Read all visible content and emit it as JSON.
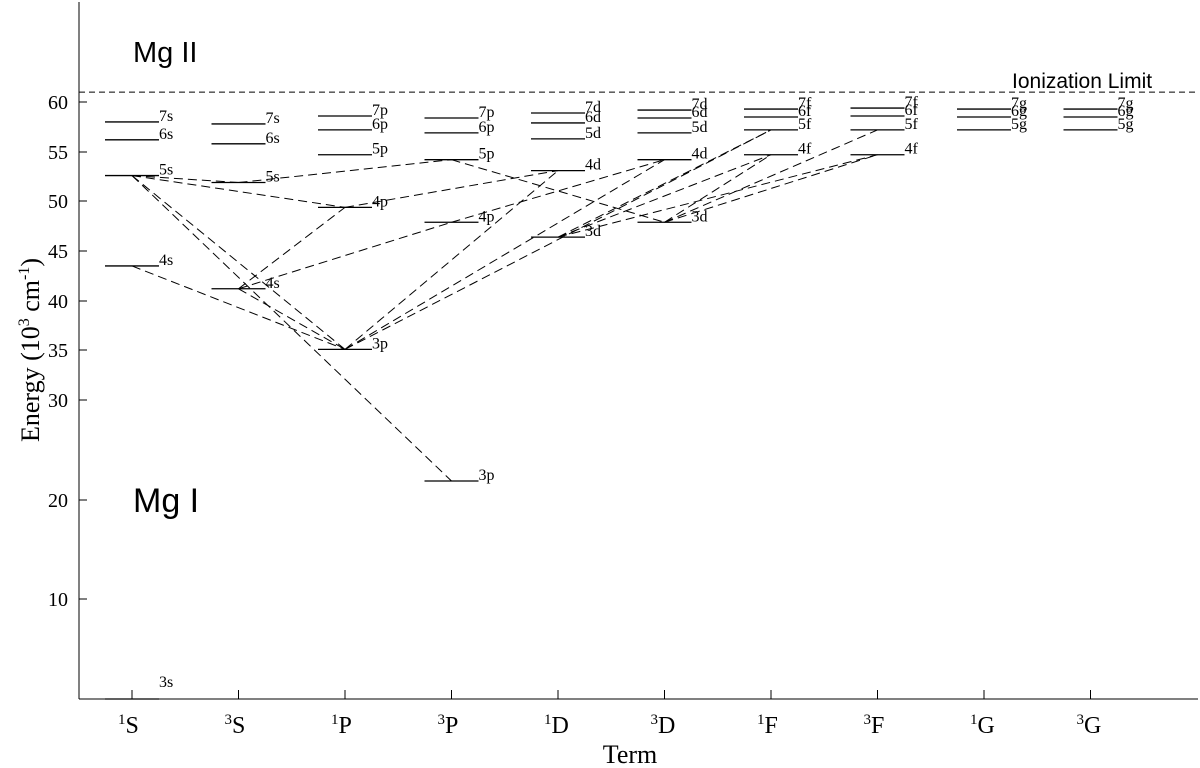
{
  "diagram": {
    "title_mg2": "Mg II",
    "title_mg1": "Mg I",
    "ionization_label": "Ionization Limit",
    "ionization_energy": 61,
    "y_axis": {
      "label_prefix": "Energy (10",
      "label_exp": "3",
      "label_unit": " cm",
      "label_unit_exp": "-1",
      "label_suffix": ")",
      "ticks": [
        "60",
        "55",
        "50",
        "45",
        "40",
        "35",
        "30",
        "20",
        "10"
      ]
    },
    "x_axis": {
      "label": "Term",
      "terms": [
        {
          "sup": "1",
          "base": "S"
        },
        {
          "sup": "3",
          "base": "S"
        },
        {
          "sup": "1",
          "base": "P"
        },
        {
          "sup": "3",
          "base": "P"
        },
        {
          "sup": "1",
          "base": "D"
        },
        {
          "sup": "3",
          "base": "D"
        },
        {
          "sup": "1",
          "base": "F"
        },
        {
          "sup": "3",
          "base": "F"
        },
        {
          "sup": "1",
          "base": "G"
        },
        {
          "sup": "3",
          "base": "G"
        }
      ]
    },
    "levels": [
      {
        "term": 0,
        "label": "3s",
        "energy": 0
      },
      {
        "term": 0,
        "label": "4s",
        "energy": 43.5
      },
      {
        "term": 0,
        "label": "5s",
        "energy": 52.6
      },
      {
        "term": 0,
        "label": "6s",
        "energy": 56.2
      },
      {
        "term": 0,
        "label": "7s",
        "energy": 58
      },
      {
        "term": 1,
        "label": "4s",
        "energy": 41.2
      },
      {
        "term": 1,
        "label": "5s",
        "energy": 51.9
      },
      {
        "term": 1,
        "label": "6s",
        "energy": 55.8
      },
      {
        "term": 1,
        "label": "7s",
        "energy": 57.8
      },
      {
        "term": 2,
        "label": "3p",
        "energy": 35.1
      },
      {
        "term": 2,
        "label": "4p",
        "energy": 49.4
      },
      {
        "term": 2,
        "label": "5p",
        "energy": 54.7
      },
      {
        "term": 2,
        "label": "6p",
        "energy": 57.2
      },
      {
        "term": 2,
        "label": "7p",
        "energy": 58.6
      },
      {
        "term": 3,
        "label": "3p",
        "energy": 21.9
      },
      {
        "term": 3,
        "label": "4p",
        "energy": 47.9
      },
      {
        "term": 3,
        "label": "5p",
        "energy": 54.2
      },
      {
        "term": 3,
        "label": "6p",
        "energy": 56.9
      },
      {
        "term": 3,
        "label": "7p",
        "energy": 58.4
      },
      {
        "term": 4,
        "label": "3d",
        "energy": 46.4
      },
      {
        "term": 4,
        "label": "4d",
        "energy": 53.1
      },
      {
        "term": 4,
        "label": "5d",
        "energy": 56.3
      },
      {
        "term": 4,
        "label": "6d",
        "energy": 57.9
      },
      {
        "term": 4,
        "label": "7d",
        "energy": 58.9
      },
      {
        "term": 5,
        "label": "3d",
        "energy": 47.9
      },
      {
        "term": 5,
        "label": "4d",
        "energy": 54.2
      },
      {
        "term": 5,
        "label": "5d",
        "energy": 56.9
      },
      {
        "term": 5,
        "label": "6d",
        "energy": 58.4
      },
      {
        "term": 5,
        "label": "7d",
        "energy": 59.2
      },
      {
        "term": 6,
        "label": "4f",
        "energy": 54.7
      },
      {
        "term": 6,
        "label": "5f",
        "energy": 57.2
      },
      {
        "term": 6,
        "label": "6f",
        "energy": 58.5
      },
      {
        "term": 6,
        "label": "7f",
        "energy": 59.3
      },
      {
        "term": 7,
        "label": "4f",
        "energy": 54.7
      },
      {
        "term": 7,
        "label": "5f",
        "energy": 57.2
      },
      {
        "term": 7,
        "label": "6f",
        "energy": 58.6
      },
      {
        "term": 7,
        "label": "7f",
        "energy": 59.4
      },
      {
        "term": 8,
        "label": "5g",
        "energy": 57.2
      },
      {
        "term": 8,
        "label": "6g",
        "energy": 58.5
      },
      {
        "term": 8,
        "label": "7g",
        "energy": 59.3
      },
      {
        "term": 9,
        "label": "5g",
        "energy": 57.2
      },
      {
        "term": 9,
        "label": "6g",
        "energy": 58.5
      },
      {
        "term": 9,
        "label": "7g",
        "energy": 59.3
      }
    ],
    "transitions": [
      {
        "from": {
          "term": 0,
          "energy": 52.6
        },
        "to": {
          "term": 1,
          "energy": 51.9
        }
      },
      {
        "from": {
          "term": 0,
          "energy": 52.6
        },
        "to": {
          "term": 2,
          "energy": 49.4
        }
      },
      {
        "from": {
          "term": 0,
          "energy": 52.6
        },
        "to": {
          "term": 2,
          "energy": 35.1
        }
      },
      {
        "from": {
          "term": 0,
          "energy": 52.6
        },
        "to": {
          "term": 3,
          "energy": 21.9
        }
      },
      {
        "from": {
          "term": 0,
          "energy": 43.5
        },
        "to": {
          "term": 2,
          "energy": 35.1
        }
      },
      {
        "from": {
          "term": 1,
          "energy": 51.9
        },
        "to": {
          "term": 3,
          "energy": 54.2
        }
      },
      {
        "from": {
          "term": 1,
          "energy": 41.2
        },
        "to": {
          "term": 2,
          "energy": 49.4
        }
      },
      {
        "from": {
          "term": 1,
          "energy": 41.2
        },
        "to": {
          "term": 3,
          "energy": 47.9
        }
      },
      {
        "from": {
          "term": 1,
          "energy": 41.2
        },
        "to": {
          "term": 2,
          "energy": 35.1
        }
      },
      {
        "from": {
          "term": 2,
          "energy": 35.1
        },
        "to": {
          "term": 4,
          "energy": 53.1
        }
      },
      {
        "from": {
          "term": 2,
          "energy": 35.1
        },
        "to": {
          "term": 5,
          "energy": 54.2
        }
      },
      {
        "from": {
          "term": 2,
          "energy": 35.1
        },
        "to": {
          "term": 6,
          "energy": 57.2
        }
      },
      {
        "from": {
          "term": 2,
          "energy": 49.4
        },
        "to": {
          "term": 4,
          "energy": 53.1
        }
      },
      {
        "from": {
          "term": 3,
          "energy": 47.9
        },
        "to": {
          "term": 5,
          "energy": 54.2
        }
      },
      {
        "from": {
          "term": 3,
          "energy": 54.2
        },
        "to": {
          "term": 5,
          "energy": 47.9
        }
      },
      {
        "from": {
          "term": 4,
          "energy": 46.4
        },
        "to": {
          "term": 6,
          "energy": 54.7
        }
      },
      {
        "from": {
          "term": 4,
          "energy": 46.4
        },
        "to": {
          "term": 6,
          "energy": 57.2
        }
      },
      {
        "from": {
          "term": 5,
          "energy": 47.9
        },
        "to": {
          "term": 7,
          "energy": 54.7
        }
      },
      {
        "from": {
          "term": 5,
          "energy": 47.9
        },
        "to": {
          "term": 7,
          "energy": 57.2
        }
      },
      {
        "from": {
          "term": 5,
          "energy": 47.9
        },
        "to": {
          "term": 6,
          "energy": 54.7
        }
      },
      {
        "from": {
          "term": 4,
          "energy": 46.4
        },
        "to": {
          "term": 7,
          "energy": 54.7
        }
      }
    ]
  }
}
